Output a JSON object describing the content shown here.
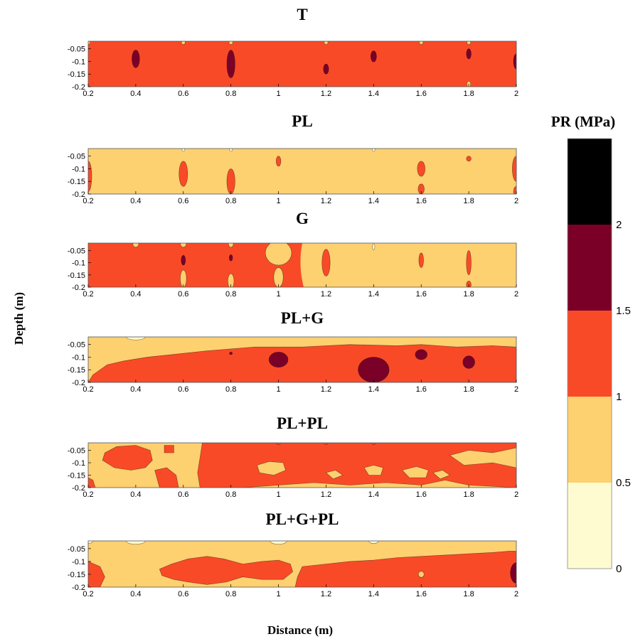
{
  "chart_data": {
    "type": "heatmap",
    "xlabel": "Distance (m)",
    "ylabel": "Depth (m)",
    "xlim": [
      0.2,
      2
    ],
    "ylim": [
      -0.2,
      -0.02
    ],
    "x_ticks": [
      "0.2",
      "0.4",
      "0.6",
      "0.8",
      "1",
      "1.2",
      "1.4",
      "1.6",
      "1.8",
      "2"
    ],
    "y_ticks": [
      "-0.05",
      "-0.1",
      "-0.15",
      "-0.2"
    ],
    "colorbar": {
      "title": "PR (MPa)",
      "range": [
        0,
        2.5
      ],
      "levels": [
        0,
        0.5,
        1,
        1.5,
        2,
        2.5
      ],
      "tick_labels": [
        "0",
        "0.5",
        "1",
        "1.5",
        "2"
      ],
      "colors": [
        "#fffbd0",
        "#fdd070",
        "#f94a28",
        "#7a0028",
        "#000000"
      ]
    },
    "background_class": {
      "T": 2,
      "PL": 1,
      "G": 2,
      "PL+G": 1,
      "PL+PL": 1,
      "PL+G+PL": 1
    },
    "panels": [
      {
        "title": "T",
        "regions": [
          {
            "class": 3,
            "x": 0.4,
            "y": -0.09,
            "rx": 0.016,
            "ry": 0.035
          },
          {
            "class": 3,
            "x": 0.8,
            "y": -0.11,
            "rx": 0.017,
            "ry": 0.055
          },
          {
            "class": 3,
            "x": 1.2,
            "y": -0.13,
            "rx": 0.011,
            "ry": 0.02
          },
          {
            "class": 3,
            "x": 1.4,
            "y": -0.08,
            "rx": 0.012,
            "ry": 0.022
          },
          {
            "class": 3,
            "x": 1.8,
            "y": -0.07,
            "rx": 0.01,
            "ry": 0.02
          },
          {
            "class": 3,
            "x": 2.0,
            "y": -0.1,
            "rx": 0.012,
            "ry": 0.03
          },
          {
            "class": 1,
            "x": 0.2,
            "y": -0.025,
            "rx": 0.008,
            "ry": 0.008
          },
          {
            "class": 1,
            "x": 0.6,
            "y": -0.025,
            "rx": 0.008,
            "ry": 0.008
          },
          {
            "class": 1,
            "x": 0.8,
            "y": -0.025,
            "rx": 0.008,
            "ry": 0.008
          },
          {
            "class": 1,
            "x": 1.2,
            "y": -0.025,
            "rx": 0.008,
            "ry": 0.008
          },
          {
            "class": 1,
            "x": 1.6,
            "y": -0.025,
            "rx": 0.008,
            "ry": 0.008
          },
          {
            "class": 1,
            "x": 1.8,
            "y": -0.025,
            "rx": 0.008,
            "ry": 0.008
          },
          {
            "class": 1,
            "x": 1.8,
            "y": -0.19,
            "rx": 0.008,
            "ry": 0.012
          }
        ]
      },
      {
        "title": "PL",
        "regions": [
          {
            "class": 2,
            "x": 0.2,
            "y": -0.13,
            "rx": 0.015,
            "ry": 0.06
          },
          {
            "class": 2,
            "x": 0.6,
            "y": -0.12,
            "rx": 0.018,
            "ry": 0.05
          },
          {
            "class": 2,
            "x": 0.8,
            "y": -0.15,
            "rx": 0.017,
            "ry": 0.05
          },
          {
            "class": 2,
            "x": 1.0,
            "y": -0.07,
            "rx": 0.01,
            "ry": 0.02
          },
          {
            "class": 2,
            "x": 1.6,
            "y": -0.1,
            "rx": 0.016,
            "ry": 0.03
          },
          {
            "class": 2,
            "x": 1.6,
            "y": -0.18,
            "rx": 0.013,
            "ry": 0.02
          },
          {
            "class": 2,
            "x": 1.8,
            "y": -0.06,
            "rx": 0.01,
            "ry": 0.01
          },
          {
            "class": 2,
            "x": 2.0,
            "y": -0.1,
            "rx": 0.017,
            "ry": 0.05
          },
          {
            "class": 2,
            "x": 2.0,
            "y": -0.19,
            "rx": 0.012,
            "ry": 0.02
          },
          {
            "class": 0,
            "x": 0.6,
            "y": -0.025,
            "rx": 0.006,
            "ry": 0.006
          },
          {
            "class": 0,
            "x": 0.8,
            "y": -0.025,
            "rx": 0.006,
            "ry": 0.006
          },
          {
            "class": 0,
            "x": 1.4,
            "y": -0.025,
            "rx": 0.006,
            "ry": 0.006
          }
        ]
      },
      {
        "title": "G",
        "split_x": 1.1,
        "regions": [
          {
            "class": 1,
            "x": 1.0,
            "y": -0.06,
            "rx": 0.055,
            "ry": 0.05
          },
          {
            "class": 1,
            "x": 1.0,
            "y": -0.16,
            "rx": 0.02,
            "ry": 0.04
          },
          {
            "class": 1,
            "x": 0.4,
            "y": -0.025,
            "rx": 0.012,
            "ry": 0.012
          },
          {
            "class": 1,
            "x": 0.6,
            "y": -0.025,
            "rx": 0.012,
            "ry": 0.012
          },
          {
            "class": 1,
            "x": 0.8,
            "y": -0.025,
            "rx": 0.01,
            "ry": 0.012
          },
          {
            "class": 1,
            "x": 0.6,
            "y": -0.165,
            "rx": 0.013,
            "ry": 0.035
          },
          {
            "class": 1,
            "x": 0.8,
            "y": -0.175,
            "rx": 0.013,
            "ry": 0.03
          },
          {
            "class": 3,
            "x": 0.6,
            "y": -0.09,
            "rx": 0.009,
            "ry": 0.02
          },
          {
            "class": 3,
            "x": 0.8,
            "y": -0.08,
            "rx": 0.007,
            "ry": 0.013
          },
          {
            "class": 2,
            "x": 1.2,
            "y": -0.1,
            "rx": 0.017,
            "ry": 0.055
          },
          {
            "class": 2,
            "x": 1.6,
            "y": -0.09,
            "rx": 0.01,
            "ry": 0.03
          },
          {
            "class": 2,
            "x": 1.8,
            "y": -0.1,
            "rx": 0.01,
            "ry": 0.05
          },
          {
            "class": 2,
            "x": 1.8,
            "y": -0.19,
            "rx": 0.01,
            "ry": 0.015
          },
          {
            "class": 0,
            "x": 1.4,
            "y": -0.035,
            "rx": 0.005,
            "ry": 0.012
          }
        ]
      },
      {
        "title": "PL+G",
        "regions": [
          {
            "class": 3,
            "x": 1.0,
            "y": -0.11,
            "rx": 0.04,
            "ry": 0.03
          },
          {
            "class": 3,
            "x": 1.4,
            "y": -0.15,
            "rx": 0.065,
            "ry": 0.05
          },
          {
            "class": 3,
            "x": 1.6,
            "y": -0.09,
            "rx": 0.025,
            "ry": 0.02
          },
          {
            "class": 3,
            "x": 1.8,
            "y": -0.12,
            "rx": 0.025,
            "ry": 0.025
          },
          {
            "class": 3,
            "x": 0.8,
            "y": -0.085,
            "rx": 0.006,
            "ry": 0.005
          },
          {
            "class": 0,
            "x": 0.4,
            "y": -0.02,
            "rx": 0.04,
            "ry": 0.012
          }
        ]
      },
      {
        "title": "PL+PL",
        "regions": [
          {
            "class": 2,
            "x": 1.0,
            "y": -0.02,
            "rx": 0.008,
            "ry": 0.008
          },
          {
            "class": 2,
            "x": 1.2,
            "y": -0.02,
            "rx": 0.008,
            "ry": 0.008
          },
          {
            "class": 2,
            "x": 1.4,
            "y": -0.02,
            "rx": 0.008,
            "ry": 0.008
          }
        ]
      },
      {
        "title": "PL+G+PL",
        "regions": [
          {
            "class": 3,
            "x": 2.0,
            "y": -0.145,
            "rx": 0.025,
            "ry": 0.04
          },
          {
            "class": 1,
            "x": 1.6,
            "y": -0.15,
            "rx": 0.012,
            "ry": 0.012
          },
          {
            "class": 0,
            "x": 0.2,
            "y": -0.02,
            "rx": 0.02,
            "ry": 0.01
          },
          {
            "class": 0,
            "x": 0.4,
            "y": -0.02,
            "rx": 0.04,
            "ry": 0.013
          },
          {
            "class": 0,
            "x": 1.0,
            "y": -0.02,
            "rx": 0.035,
            "ry": 0.013
          },
          {
            "class": 0,
            "x": 1.4,
            "y": -0.02,
            "rx": 0.02,
            "ry": 0.01
          }
        ]
      }
    ]
  }
}
